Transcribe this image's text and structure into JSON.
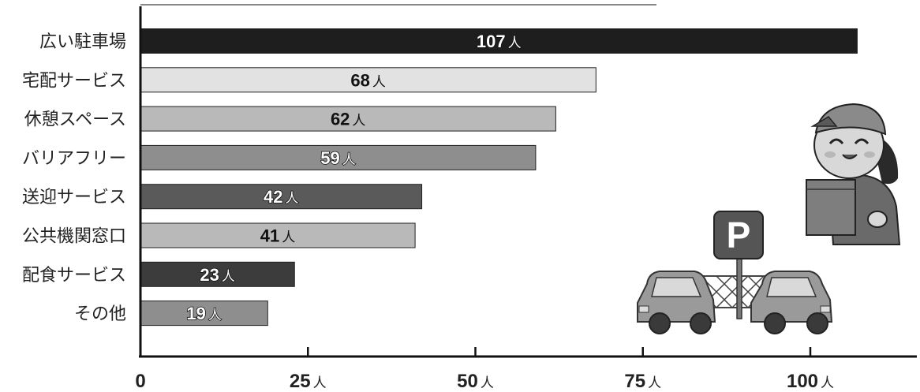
{
  "chart_data": {
    "type": "bar",
    "orientation": "horizontal",
    "title": "",
    "xlabel": "",
    "ylabel": "",
    "categories": [
      "広い駐車場",
      "宅配サービス",
      "休憩スペース",
      "バリアフリー",
      "送迎サービス",
      "公共機関窓口",
      "配食サービス",
      "その他"
    ],
    "values": [
      107,
      68,
      62,
      59,
      42,
      41,
      23,
      19
    ],
    "value_labels": [
      "107",
      "68",
      "62",
      "59",
      "42",
      "41",
      "23",
      "19"
    ],
    "value_unit": "人",
    "bar_colors": [
      "#1e1e1e",
      "#e2e2e2",
      "#b9b9b9",
      "#8e8e8e",
      "#5a5a5a",
      "#b9b9b9",
      "#3c3c3c",
      "#8e8e8e"
    ],
    "label_styles": [
      "outline-white",
      "dark",
      "dark",
      "outline-white",
      "outline-white",
      "dark",
      "outline-white",
      "outline-white"
    ],
    "xlim": [
      0,
      115
    ],
    "xticks": [
      0,
      25,
      50,
      75,
      100
    ],
    "xtick_labels": [
      "0",
      "25",
      "50",
      "75",
      "100"
    ],
    "xtick_unit": "人",
    "grid": false,
    "legend": "none"
  },
  "illustration": {
    "parking_sign_text": "P",
    "icon": "delivery-person-and-parking-illustration"
  }
}
